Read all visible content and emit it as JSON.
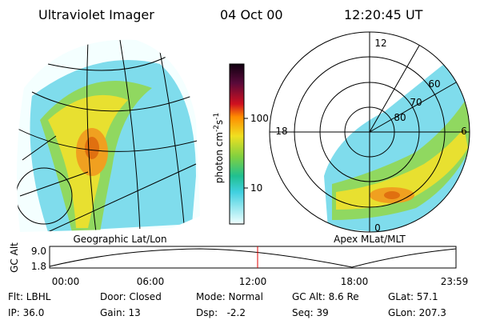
{
  "header": {
    "title": "Ultraviolet Imager",
    "date": "04 Oct 00",
    "time": "12:20:45 UT"
  },
  "geo_panel": {
    "label": "Geographic Lat/Lon"
  },
  "colorbar": {
    "label_parts": [
      "photon cm",
      "-2",
      "s",
      "-1"
    ],
    "ticks": [
      "100",
      "10"
    ]
  },
  "polar_panel": {
    "label": "Apex MLat/MLT",
    "mlt_labels": [
      "12",
      "18",
      "6",
      "0"
    ],
    "lat_labels": [
      "60",
      "70",
      "80"
    ]
  },
  "altitude_plot": {
    "axis_label": "GC Alt",
    "ticks": [
      "9.0",
      "1.8"
    ],
    "time_labels": [
      "00:00",
      "06:00",
      "12:00",
      "18:00",
      "23:59"
    ]
  },
  "info": [
    [
      "Flt: LBHL",
      "Door: Closed",
      "Mode: Normal",
      "GC Alt: 8.6 Re",
      "GLat: 57.1"
    ],
    [
      "IP: 36.0",
      "Gain: 13",
      "Dsp:   -2.2",
      "Seq: 39",
      "GLon: 207.3"
    ]
  ]
}
